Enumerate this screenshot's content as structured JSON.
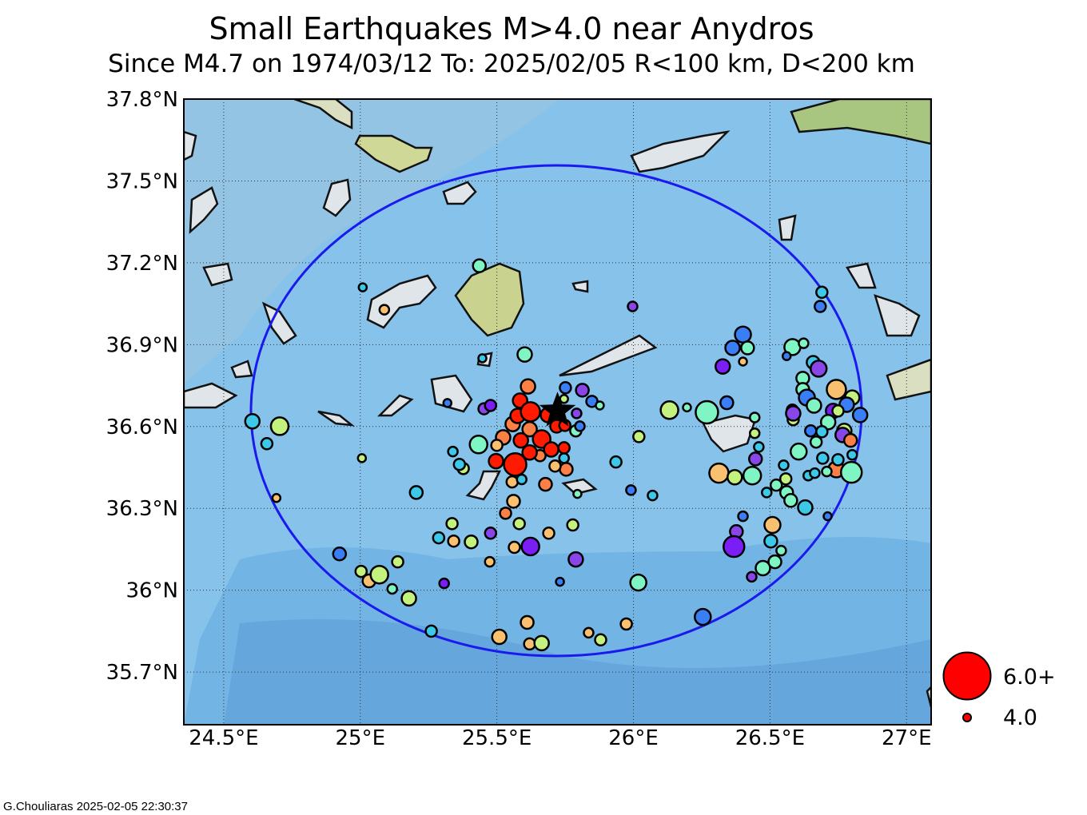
{
  "title": "Small Earthquakes M>4.0 near Anydros",
  "subtitle": "Since M4.7 on 1974/03/12  To: 2025/02/05 R<100 km, D<200 km",
  "footer": "G.Chouliaras  2025-02-05 22:30:37",
  "chart_data": {
    "type": "scatter",
    "title": "Small Earthquakes M>4.0 near Anydros",
    "xlabel": "",
    "ylabel": "",
    "xlim": [
      24.354,
      27.09
    ],
    "ylim": [
      35.507,
      37.8
    ],
    "x_ticks": [
      "24.5°E",
      "25°E",
      "25.5°E",
      "26°E",
      "26.5°E",
      "27°E"
    ],
    "x_tick_values": [
      24.5,
      25.0,
      25.5,
      26.0,
      26.5,
      27.0
    ],
    "y_ticks": [
      "37.8°N",
      "37.5°N",
      "37.2°N",
      "36.9°N",
      "36.6°N",
      "36.3°N",
      "36°N",
      "35.7°N"
    ],
    "y_tick_values": [
      37.8,
      37.5,
      37.2,
      36.9,
      36.6,
      36.3,
      36.0,
      35.7
    ],
    "grid": true,
    "main_event": {
      "label": "M4.7 1974/03/12",
      "lon": 25.722,
      "lat": 36.657,
      "marker": "star"
    },
    "search_radius_km": 100,
    "radius_circle_center": {
      "lon": 25.722,
      "lat": 36.657
    },
    "legend": {
      "placement": "bottom-right outside",
      "entries": [
        {
          "label": "6.0+",
          "mag": 6.0
        },
        {
          "label": "4.0",
          "mag": 4.0
        }
      ]
    },
    "colors": {
      "R": "#ff1a00",
      "O": "#fb8046",
      "Y": "#f9c070",
      "G": "#c4f27e",
      "M": "#7ff5c4",
      "C": "#3cc8e8",
      "B": "#3a7ef5",
      "P": "#7a1ef5",
      "V": "#8845e8"
    },
    "circle_color": "#1a1aee",
    "sea_color": "#86c2ea",
    "points_format": [
      "lon",
      "lat",
      "mag",
      "color_key"
    ],
    "points": [
      [
        24.605,
        36.619,
        4.36,
        "C"
      ],
      [
        24.705,
        36.601,
        4.52,
        "G"
      ],
      [
        24.658,
        36.537,
        4.2,
        "C"
      ],
      [
        24.693,
        36.338,
        4.04,
        "Y"
      ],
      [
        25.009,
        37.11,
        4.04,
        "C"
      ],
      [
        25.088,
        37.028,
        4.12,
        "Y"
      ],
      [
        25.436,
        37.189,
        4.28,
        "M"
      ],
      [
        25.006,
        36.484,
        4.04,
        "G"
      ],
      [
        24.924,
        36.133,
        4.28,
        "B"
      ],
      [
        25.003,
        36.069,
        4.2,
        "G"
      ],
      [
        25.032,
        36.034,
        4.28,
        "Y"
      ],
      [
        25.07,
        36.057,
        4.52,
        "G"
      ],
      [
        25.137,
        36.104,
        4.2,
        "G"
      ],
      [
        25.117,
        36.005,
        4.12,
        "M"
      ],
      [
        25.178,
        35.97,
        4.36,
        "G"
      ],
      [
        25.26,
        35.85,
        4.2,
        "C"
      ],
      [
        25.205,
        36.358,
        4.28,
        "C"
      ],
      [
        25.307,
        36.025,
        4.12,
        "P"
      ],
      [
        25.287,
        36.192,
        4.2,
        "C"
      ],
      [
        25.336,
        36.244,
        4.2,
        "G"
      ],
      [
        25.342,
        36.18,
        4.2,
        "Y"
      ],
      [
        25.406,
        36.177,
        4.28,
        "G"
      ],
      [
        25.477,
        36.209,
        4.2,
        "V"
      ],
      [
        25.474,
        36.104,
        4.12,
        "Y"
      ],
      [
        25.509,
        35.829,
        4.36,
        "Y"
      ],
      [
        25.611,
        35.882,
        4.28,
        "Y"
      ],
      [
        25.62,
        35.803,
        4.2,
        "Y"
      ],
      [
        25.664,
        35.806,
        4.36,
        "G"
      ],
      [
        25.564,
        36.157,
        4.2,
        "Y"
      ],
      [
        25.582,
        36.244,
        4.2,
        "G"
      ],
      [
        25.623,
        36.16,
        4.52,
        "P"
      ],
      [
        25.69,
        36.209,
        4.2,
        "Y"
      ],
      [
        25.778,
        36.239,
        4.2,
        "G"
      ],
      [
        25.789,
        36.113,
        4.36,
        "V"
      ],
      [
        25.731,
        36.031,
        4.04,
        "B"
      ],
      [
        25.836,
        35.844,
        4.12,
        "Y"
      ],
      [
        25.88,
        35.818,
        4.2,
        "G"
      ],
      [
        25.974,
        35.876,
        4.2,
        "Y"
      ],
      [
        26.018,
        36.028,
        4.44,
        "M"
      ],
      [
        26.254,
        35.902,
        4.44,
        "B"
      ],
      [
        25.936,
        36.47,
        4.2,
        "C"
      ],
      [
        25.991,
        36.367,
        4.12,
        "B"
      ],
      [
        26.07,
        36.347,
        4.12,
        "C"
      ],
      [
        26.02,
        36.563,
        4.2,
        "G"
      ],
      [
        25.997,
        37.04,
        4.12,
        "V"
      ],
      [
        25.602,
        36.864,
        4.36,
        "M"
      ],
      [
        25.447,
        36.85,
        4.04,
        "C"
      ],
      [
        25.319,
        36.686,
        4.04,
        "B"
      ],
      [
        25.433,
        36.534,
        4.52,
        "M"
      ],
      [
        25.339,
        36.508,
        4.12,
        "C"
      ],
      [
        25.377,
        36.446,
        4.2,
        "G"
      ],
      [
        25.363,
        36.461,
        4.2,
        "C"
      ],
      [
        25.453,
        36.665,
        4.2,
        "V"
      ],
      [
        25.477,
        36.677,
        4.2,
        "P"
      ],
      [
        25.614,
        36.747,
        4.36,
        "O"
      ],
      [
        25.585,
        36.695,
        4.36,
        "R"
      ],
      [
        25.576,
        36.639,
        4.36,
        "R"
      ],
      [
        25.623,
        36.654,
        4.6,
        "R"
      ],
      [
        25.687,
        36.642,
        4.36,
        "R"
      ],
      [
        25.664,
        36.554,
        4.52,
        "R"
      ],
      [
        25.588,
        36.549,
        4.36,
        "R"
      ],
      [
        25.558,
        36.609,
        4.36,
        "O"
      ],
      [
        25.523,
        36.56,
        4.36,
        "O"
      ],
      [
        25.497,
        36.473,
        4.36,
        "R"
      ],
      [
        25.567,
        36.461,
        4.76,
        "R"
      ],
      [
        25.62,
        36.505,
        4.36,
        "R"
      ],
      [
        25.658,
        36.493,
        4.2,
        "O"
      ],
      [
        25.699,
        36.516,
        4.36,
        "R"
      ],
      [
        25.746,
        36.522,
        4.2,
        "R"
      ],
      [
        25.754,
        36.443,
        4.28,
        "O"
      ],
      [
        25.678,
        36.388,
        4.28,
        "O"
      ],
      [
        25.556,
        36.397,
        4.2,
        "Y"
      ],
      [
        25.532,
        36.282,
        4.2,
        "O"
      ],
      [
        25.561,
        36.326,
        4.28,
        "Y"
      ],
      [
        25.62,
        36.59,
        4.36,
        "O"
      ],
      [
        25.719,
        36.601,
        4.28,
        "R"
      ],
      [
        25.5,
        36.531,
        4.2,
        "Y"
      ],
      [
        25.713,
        36.455,
        4.2,
        "Y"
      ],
      [
        25.749,
        36.604,
        4.2,
        "R"
      ],
      [
        25.591,
        36.406,
        4.12,
        "C"
      ],
      [
        25.746,
        36.701,
        4.04,
        "G"
      ],
      [
        25.751,
        36.742,
        4.2,
        "B"
      ],
      [
        25.813,
        36.733,
        4.28,
        "V"
      ],
      [
        25.792,
        36.648,
        4.12,
        "V"
      ],
      [
        25.848,
        36.692,
        4.2,
        "B"
      ],
      [
        25.877,
        36.677,
        4.04,
        "M"
      ],
      [
        25.789,
        36.584,
        4.2,
        "M"
      ],
      [
        25.804,
        36.601,
        4.12,
        "B"
      ],
      [
        25.746,
        36.484,
        4.12,
        "C"
      ],
      [
        25.795,
        36.353,
        4.04,
        "M"
      ],
      [
        26.132,
        36.66,
        4.52,
        "G"
      ],
      [
        26.196,
        36.67,
        4.04,
        "M"
      ],
      [
        26.269,
        36.652,
        4.76,
        "M"
      ],
      [
        26.342,
        36.687,
        4.28,
        "B"
      ],
      [
        26.327,
        36.82,
        4.36,
        "P"
      ],
      [
        26.363,
        36.888,
        4.36,
        "B"
      ],
      [
        26.401,
        36.937,
        4.44,
        "B"
      ],
      [
        26.418,
        36.888,
        4.28,
        "M"
      ],
      [
        26.401,
        36.838,
        4.04,
        "Y"
      ],
      [
        26.444,
        36.633,
        4.12,
        "M"
      ],
      [
        26.444,
        36.575,
        4.12,
        "G"
      ],
      [
        26.459,
        36.525,
        4.12,
        "C"
      ],
      [
        26.447,
        36.481,
        4.28,
        "V"
      ],
      [
        26.313,
        36.429,
        4.6,
        "Y"
      ],
      [
        26.371,
        36.414,
        4.36,
        "G"
      ],
      [
        26.435,
        36.42,
        4.52,
        "M"
      ],
      [
        26.401,
        36.271,
        4.12,
        "B"
      ],
      [
        26.377,
        36.215,
        4.28,
        "V"
      ],
      [
        26.368,
        36.16,
        4.68,
        "P"
      ],
      [
        26.433,
        36.049,
        4.12,
        "V"
      ],
      [
        26.474,
        36.081,
        4.36,
        "M"
      ],
      [
        26.518,
        36.104,
        4.28,
        "M"
      ],
      [
        26.509,
        36.239,
        4.44,
        "Y"
      ],
      [
        26.503,
        36.18,
        4.28,
        "C"
      ],
      [
        26.541,
        36.145,
        4.12,
        "M"
      ],
      [
        26.488,
        36.358,
        4.12,
        "C"
      ],
      [
        26.523,
        36.385,
        4.2,
        "M"
      ],
      [
        26.561,
        36.358,
        4.28,
        "M"
      ],
      [
        26.576,
        36.329,
        4.28,
        "M"
      ],
      [
        26.558,
        36.408,
        4.2,
        "G"
      ],
      [
        26.55,
        36.458,
        4.12,
        "C"
      ],
      [
        26.629,
        36.303,
        4.36,
        "C"
      ],
      [
        26.605,
        36.508,
        4.44,
        "M"
      ],
      [
        26.649,
        36.584,
        4.2,
        "B"
      ],
      [
        26.582,
        36.66,
        4.2,
        "G"
      ],
      [
        26.585,
        36.625,
        4.2,
        "G"
      ],
      [
        26.585,
        36.648,
        4.36,
        "V"
      ],
      [
        26.582,
        36.891,
        4.44,
        "M"
      ],
      [
        26.561,
        36.858,
        4.04,
        "B"
      ],
      [
        26.623,
        36.905,
        4.12,
        "M"
      ],
      [
        26.658,
        36.835,
        4.28,
        "C"
      ],
      [
        26.678,
        36.812,
        4.44,
        "V"
      ],
      [
        26.62,
        36.777,
        4.28,
        "M"
      ],
      [
        26.62,
        36.736,
        4.28,
        "M"
      ],
      [
        26.635,
        36.706,
        4.44,
        "B"
      ],
      [
        26.661,
        36.677,
        4.36,
        "M"
      ],
      [
        26.69,
        37.092,
        4.2,
        "C"
      ],
      [
        26.684,
        37.04,
        4.2,
        "B"
      ],
      [
        26.743,
        36.736,
        4.6,
        "Y"
      ],
      [
        26.731,
        36.657,
        4.36,
        "P"
      ],
      [
        26.713,
        36.616,
        4.36,
        "M"
      ],
      [
        26.69,
        36.581,
        4.2,
        "C"
      ],
      [
        26.772,
        36.584,
        4.36,
        "G"
      ],
      [
        26.766,
        36.569,
        4.36,
        "V"
      ],
      [
        26.801,
        36.706,
        4.36,
        "G"
      ],
      [
        26.83,
        36.642,
        4.36,
        "B"
      ],
      [
        26.795,
        36.549,
        4.28,
        "O"
      ],
      [
        26.743,
        36.443,
        4.44,
        "O"
      ],
      [
        26.798,
        36.432,
        4.68,
        "M"
      ],
      [
        26.693,
        36.484,
        4.2,
        "C"
      ],
      [
        26.749,
        36.478,
        4.2,
        "C"
      ],
      [
        26.64,
        36.42,
        4.12,
        "C"
      ],
      [
        26.664,
        36.429,
        4.12,
        "C"
      ],
      [
        26.708,
        36.435,
        4.12,
        "M"
      ],
      [
        26.669,
        36.543,
        4.2,
        "M"
      ],
      [
        26.711,
        36.271,
        4.04,
        "B"
      ],
      [
        26.801,
        36.496,
        4.12,
        "C"
      ],
      [
        26.781,
        36.68,
        4.36,
        "B"
      ],
      [
        26.749,
        36.657,
        4.2,
        "G"
      ]
    ]
  }
}
